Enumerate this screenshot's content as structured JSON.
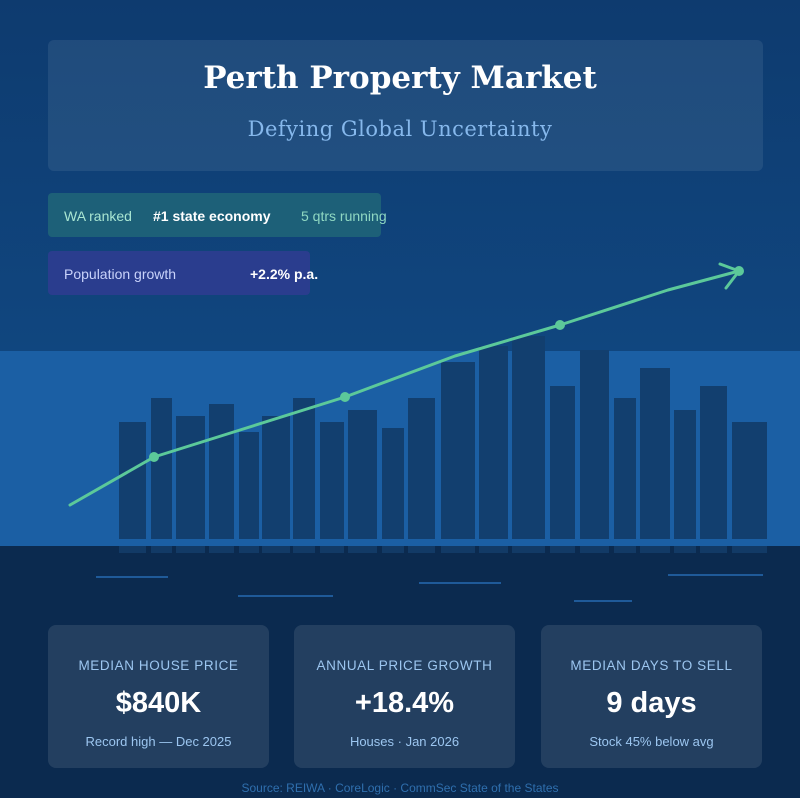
{
  "header": {
    "title": "Perth Property Market",
    "subtitle": "Defying Global Uncertainty"
  },
  "highlights": {
    "economy": {
      "label": "WA ranked",
      "value": "#1 state economy",
      "note": "5 qtrs running"
    },
    "population": {
      "label": "Population growth",
      "value": "+2.2% p.a."
    }
  },
  "stats": [
    {
      "label": "MEDIAN HOUSE PRICE",
      "value": "$840K",
      "note": "Record high — Dec 2025"
    },
    {
      "label": "ANNUAL PRICE GROWTH",
      "value": "+18.4%",
      "note": "Houses · Jan 2026"
    },
    {
      "label": "MEDIAN DAYS TO SELL",
      "value": "9 days",
      "note": "Stock 45% below avg"
    }
  ],
  "source": "Source: REIWA · CoreLogic · CommSec State of the States",
  "colors": {
    "background": "#0e3f74",
    "buildings": "#123f6f",
    "trend_line": "#5cc99a",
    "water": "#0b2a4f"
  },
  "icons": [
    "trend-arrow-icon"
  ]
}
